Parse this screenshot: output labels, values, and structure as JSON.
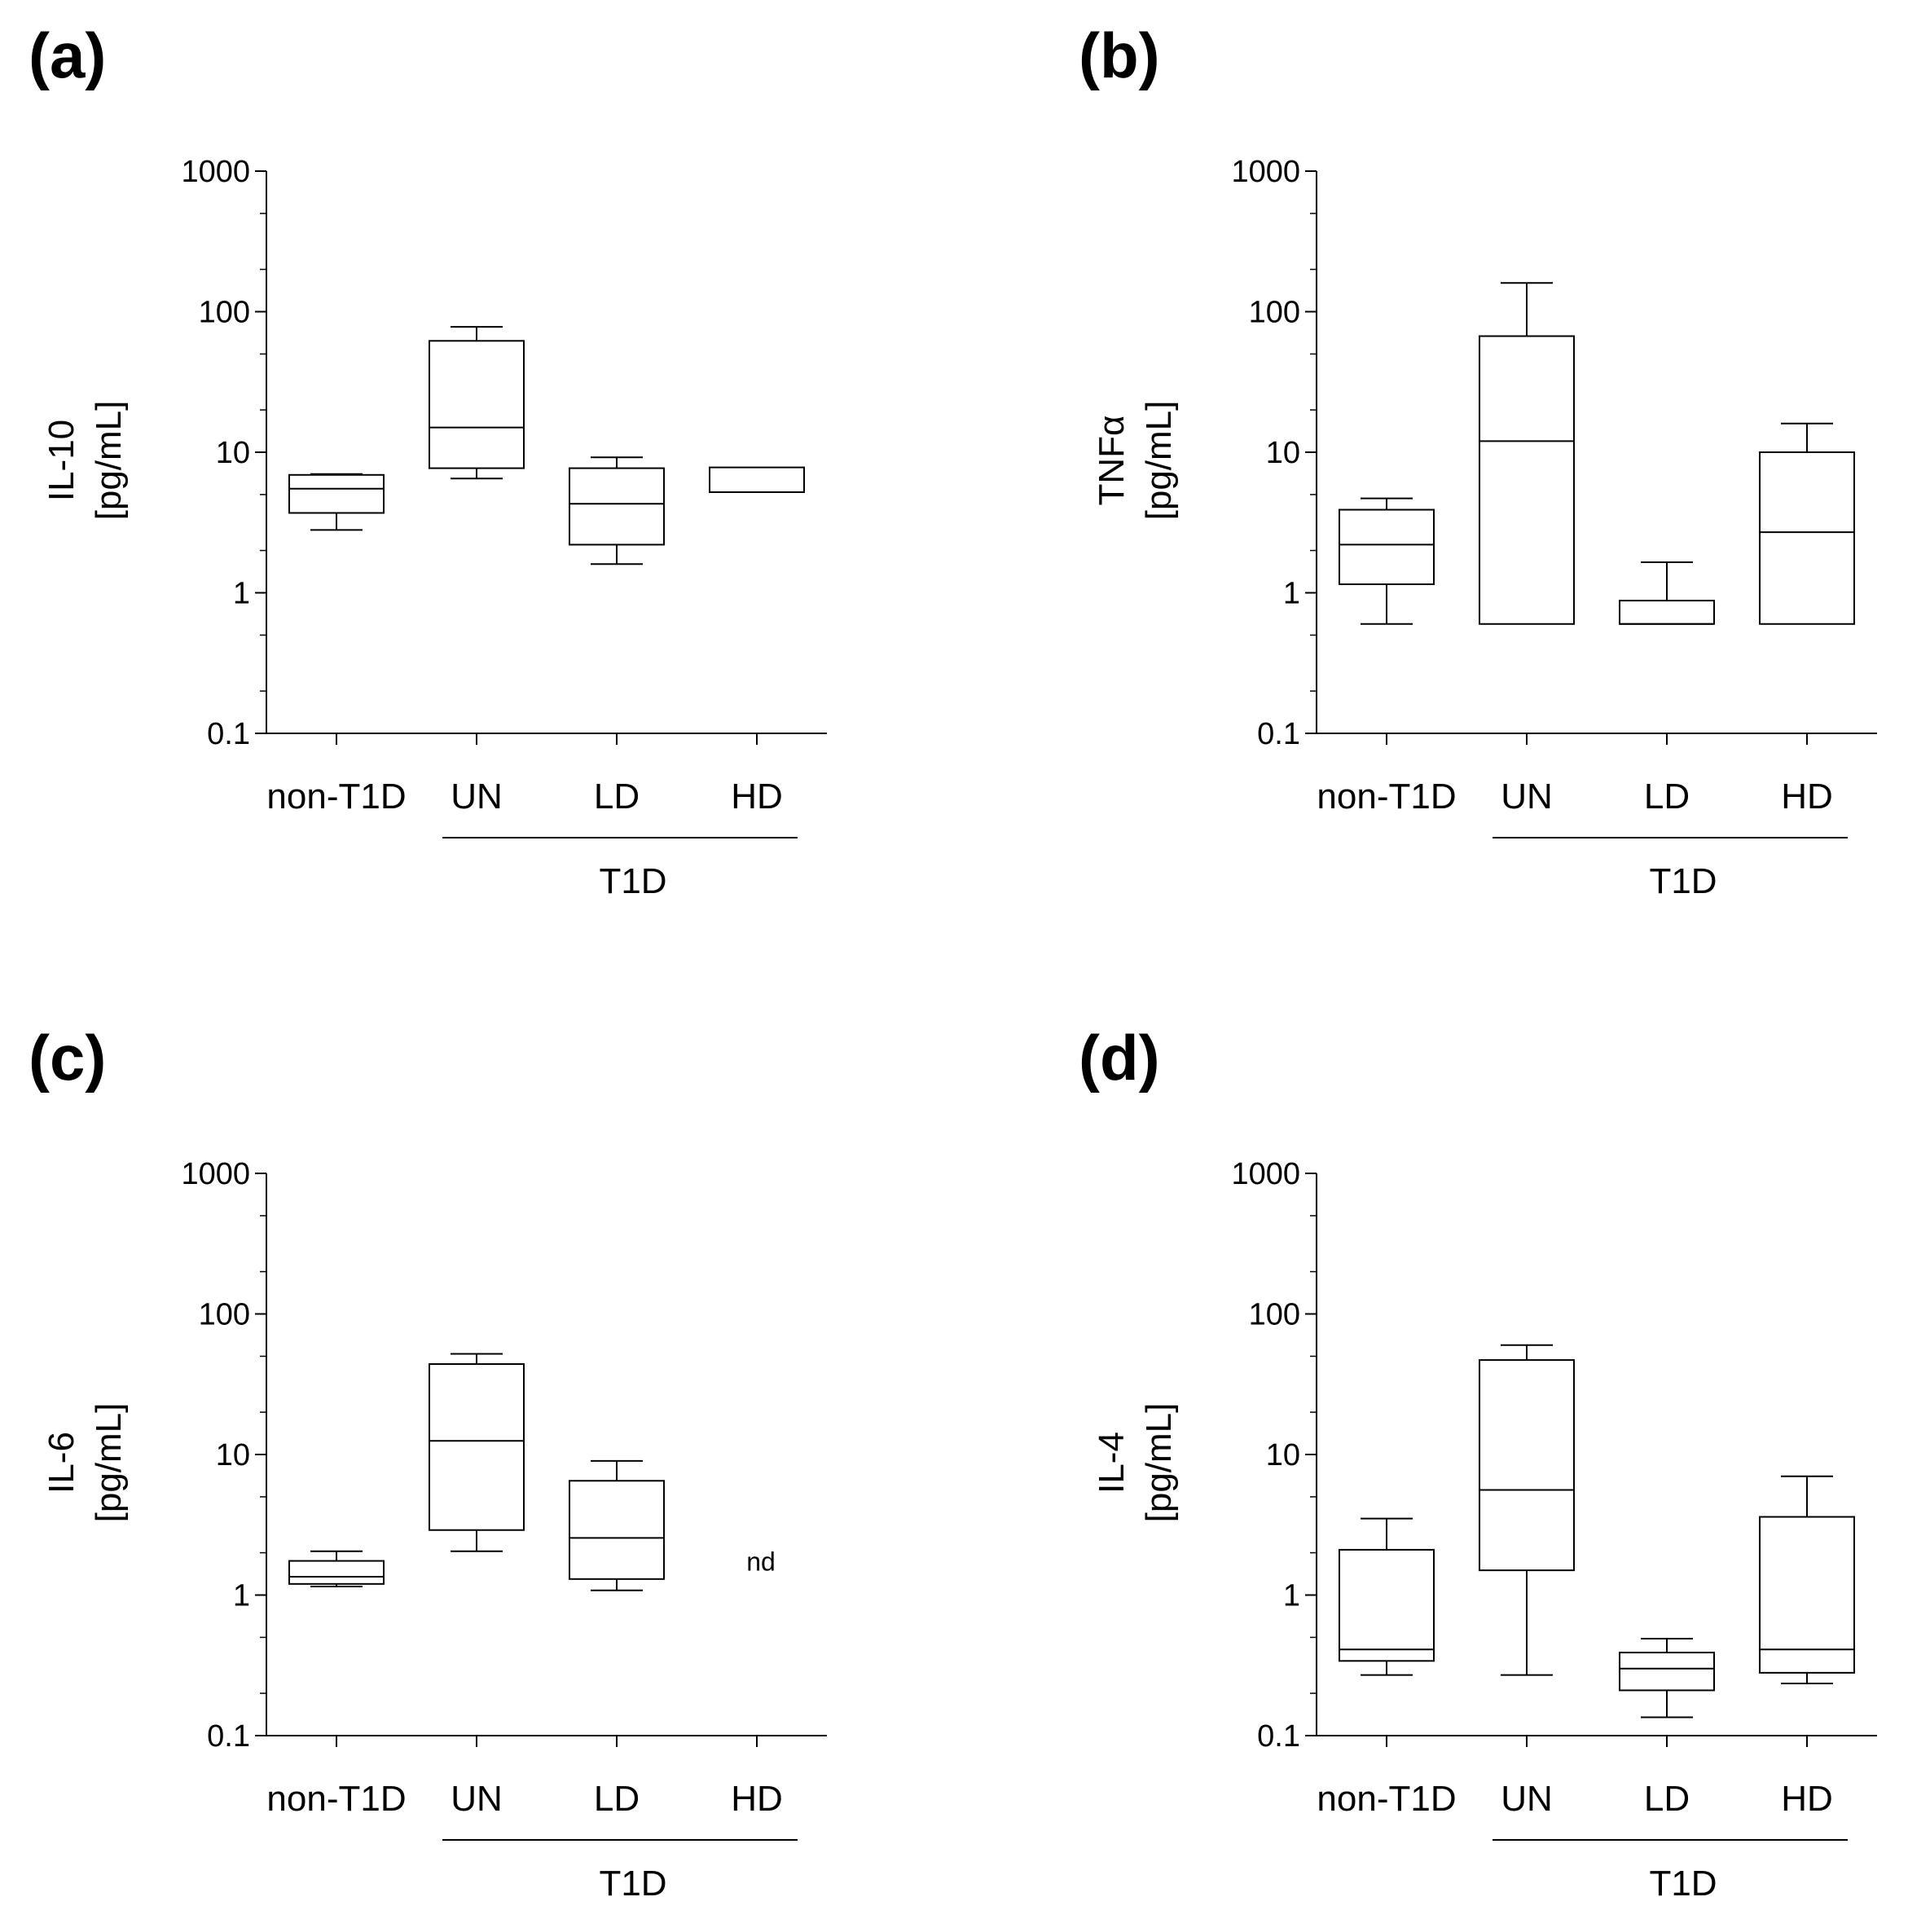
{
  "chart_data": [
    {
      "panel": "(a)",
      "type": "box",
      "ylabel_line1": "IL-10",
      "ylabel_line2": "[pg/mL]",
      "yscale": "log",
      "ylim": [
        0.1,
        1000
      ],
      "yticks": [
        "0.1",
        "1",
        "10",
        "100",
        "1000"
      ],
      "categories": [
        "non-T1D",
        "UN",
        "LD",
        "HD"
      ],
      "group_label": "T1D",
      "boxes": [
        {
          "min": 2.8,
          "q1": 3.7,
          "median": 5.5,
          "q3": 6.9,
          "max": 7.0
        },
        {
          "min": 6.5,
          "q1": 7.7,
          "median": 15,
          "q3": 62,
          "max": 78
        },
        {
          "min": 1.6,
          "q1": 2.2,
          "median": 4.3,
          "q3": 7.7,
          "max": 9.2
        },
        {
          "min": 5.2,
          "q1": 5.2,
          "median": 5.2,
          "q3": 7.8,
          "max": 7.8
        }
      ],
      "notes": [
        null,
        null,
        null,
        null
      ]
    },
    {
      "panel": "(b)",
      "type": "box",
      "ylabel_line1": "TNFα",
      "ylabel_line2": "[pg/mL]",
      "yscale": "log",
      "ylim": [
        0.1,
        1000
      ],
      "yticks": [
        "0.1",
        "1",
        "10",
        "100",
        "1000"
      ],
      "categories": [
        "non-T1D",
        "UN",
        "LD",
        "HD"
      ],
      "group_label": "T1D",
      "boxes": [
        {
          "min": 0.6,
          "q1": 1.15,
          "median": 2.2,
          "q3": 3.9,
          "max": 4.7
        },
        {
          "min": 0.6,
          "q1": 0.6,
          "median": 12,
          "q3": 67,
          "max": 160
        },
        {
          "min": 0.6,
          "q1": 0.6,
          "median": 0.6,
          "q3": 0.88,
          "max": 1.65
        },
        {
          "min": 0.6,
          "q1": 0.6,
          "median": 2.7,
          "q3": 10,
          "max": 16
        }
      ],
      "notes": [
        null,
        null,
        null,
        null
      ]
    },
    {
      "panel": "(c)",
      "type": "box",
      "ylabel_line1": "IL-6",
      "ylabel_line2": "[pg/mL]",
      "yscale": "log",
      "ylim": [
        0.1,
        1000
      ],
      "yticks": [
        "0.1",
        "1",
        "10",
        "100",
        "1000"
      ],
      "categories": [
        "non-T1D",
        "UN",
        "LD",
        "HD"
      ],
      "group_label": "T1D",
      "boxes": [
        {
          "min": 1.15,
          "q1": 1.2,
          "median": 1.35,
          "q3": 1.75,
          "max": 2.05
        },
        {
          "min": 2.05,
          "q1": 2.9,
          "median": 12.5,
          "q3": 44,
          "max": 52
        },
        {
          "min": 1.08,
          "q1": 1.3,
          "median": 2.55,
          "q3": 6.5,
          "max": 9
        },
        null
      ],
      "notes": [
        null,
        null,
        null,
        "nd"
      ]
    },
    {
      "panel": "(d)",
      "type": "box",
      "ylabel_line1": "IL-4",
      "ylabel_line2": "[pg/mL]",
      "yscale": "log",
      "ylim": [
        0.1,
        1000
      ],
      "yticks": [
        "0.1",
        "1",
        "10",
        "100",
        "1000"
      ],
      "categories": [
        "non-T1D",
        "UN",
        "LD",
        "HD"
      ],
      "group_label": "T1D",
      "boxes": [
        {
          "min": 0.27,
          "q1": 0.34,
          "median": 0.41,
          "q3": 2.1,
          "max": 3.5
        },
        {
          "min": 0.27,
          "q1": 1.5,
          "median": 5.6,
          "q3": 47,
          "max": 60
        },
        {
          "min": 0.135,
          "q1": 0.21,
          "median": 0.3,
          "q3": 0.39,
          "max": 0.49
        },
        {
          "min": 0.235,
          "q1": 0.28,
          "median": 0.41,
          "q3": 3.6,
          "max": 7
        }
      ],
      "notes": [
        null,
        null,
        null,
        null
      ]
    }
  ]
}
